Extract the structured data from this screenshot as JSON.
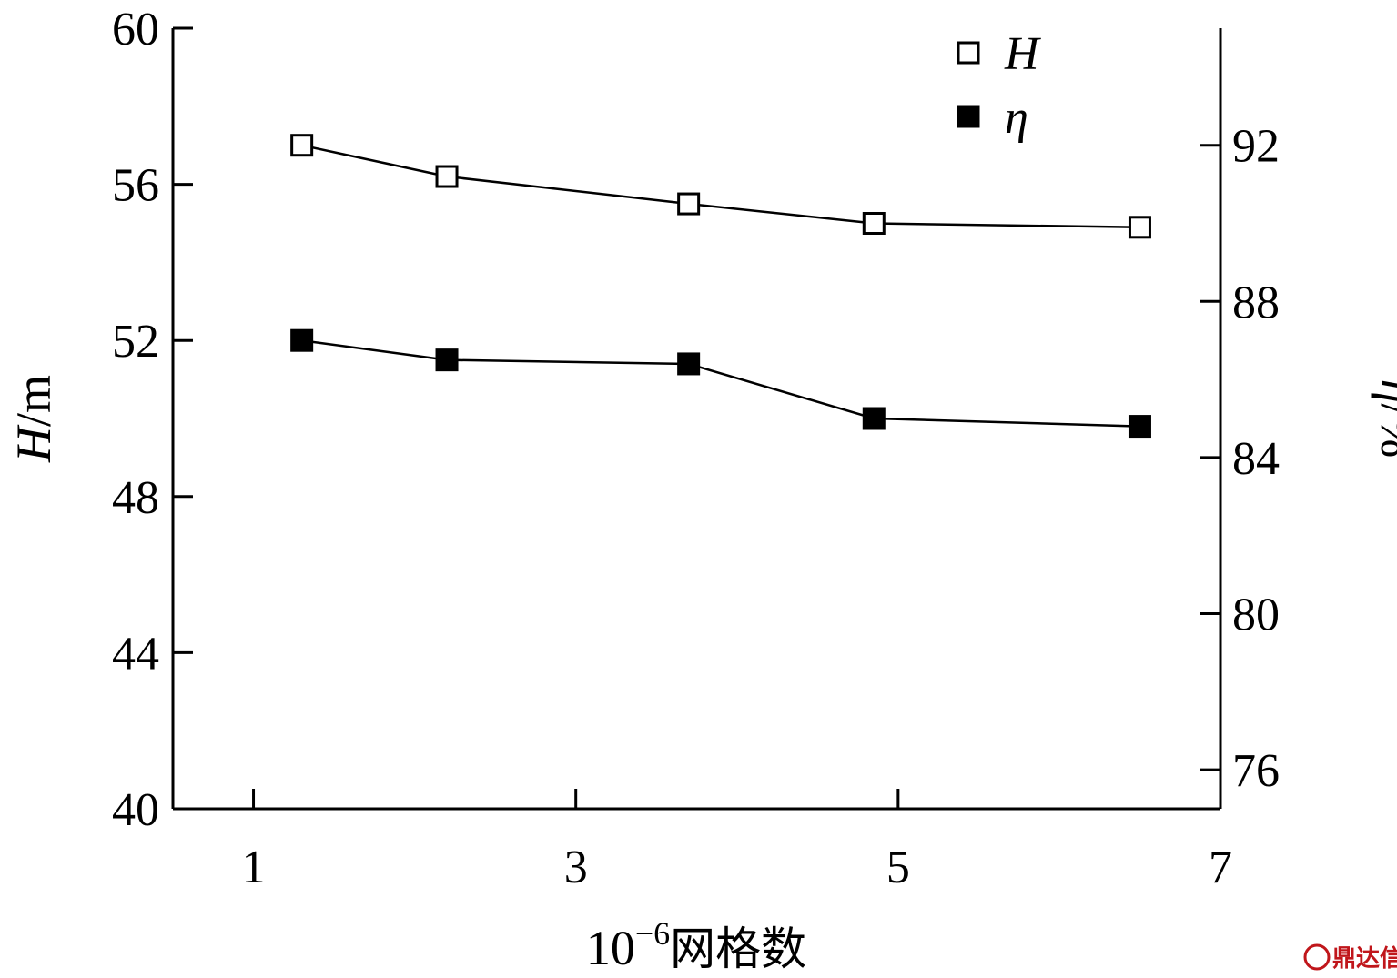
{
  "chart_data": {
    "type": "line",
    "xlabel": {
      "base": "10",
      "exp": "−6",
      "text": "网格数"
    },
    "ylabel_left": {
      "var": "H",
      "unit": "/m"
    },
    "ylabel_right": {
      "var": "η",
      "unit": "/%"
    },
    "xlim": [
      0.5,
      7
    ],
    "x_ticks": [
      1,
      3,
      5,
      7
    ],
    "ylim_left": [
      40,
      60
    ],
    "y_ticks_left": [
      40,
      44,
      48,
      52,
      56,
      60
    ],
    "ylim_right": [
      75,
      95
    ],
    "y_ticks_right": [
      76,
      80,
      84,
      88,
      92
    ],
    "legend_position": "top-right",
    "series": [
      {
        "name": "H",
        "axis": "left",
        "marker": "open-square",
        "x": [
          1.3,
          2.2,
          3.7,
          4.85,
          6.5
        ],
        "y": [
          57.0,
          56.2,
          55.5,
          55.0,
          54.9
        ]
      },
      {
        "name": "η",
        "axis": "right",
        "marker": "filled-square",
        "x": [
          1.3,
          2.2,
          3.7,
          4.85,
          6.5
        ],
        "y": [
          87.0,
          86.5,
          86.4,
          85.0,
          84.8
        ]
      }
    ]
  },
  "watermark": {
    "text": "鼎达信",
    "color": "#c0161b"
  }
}
